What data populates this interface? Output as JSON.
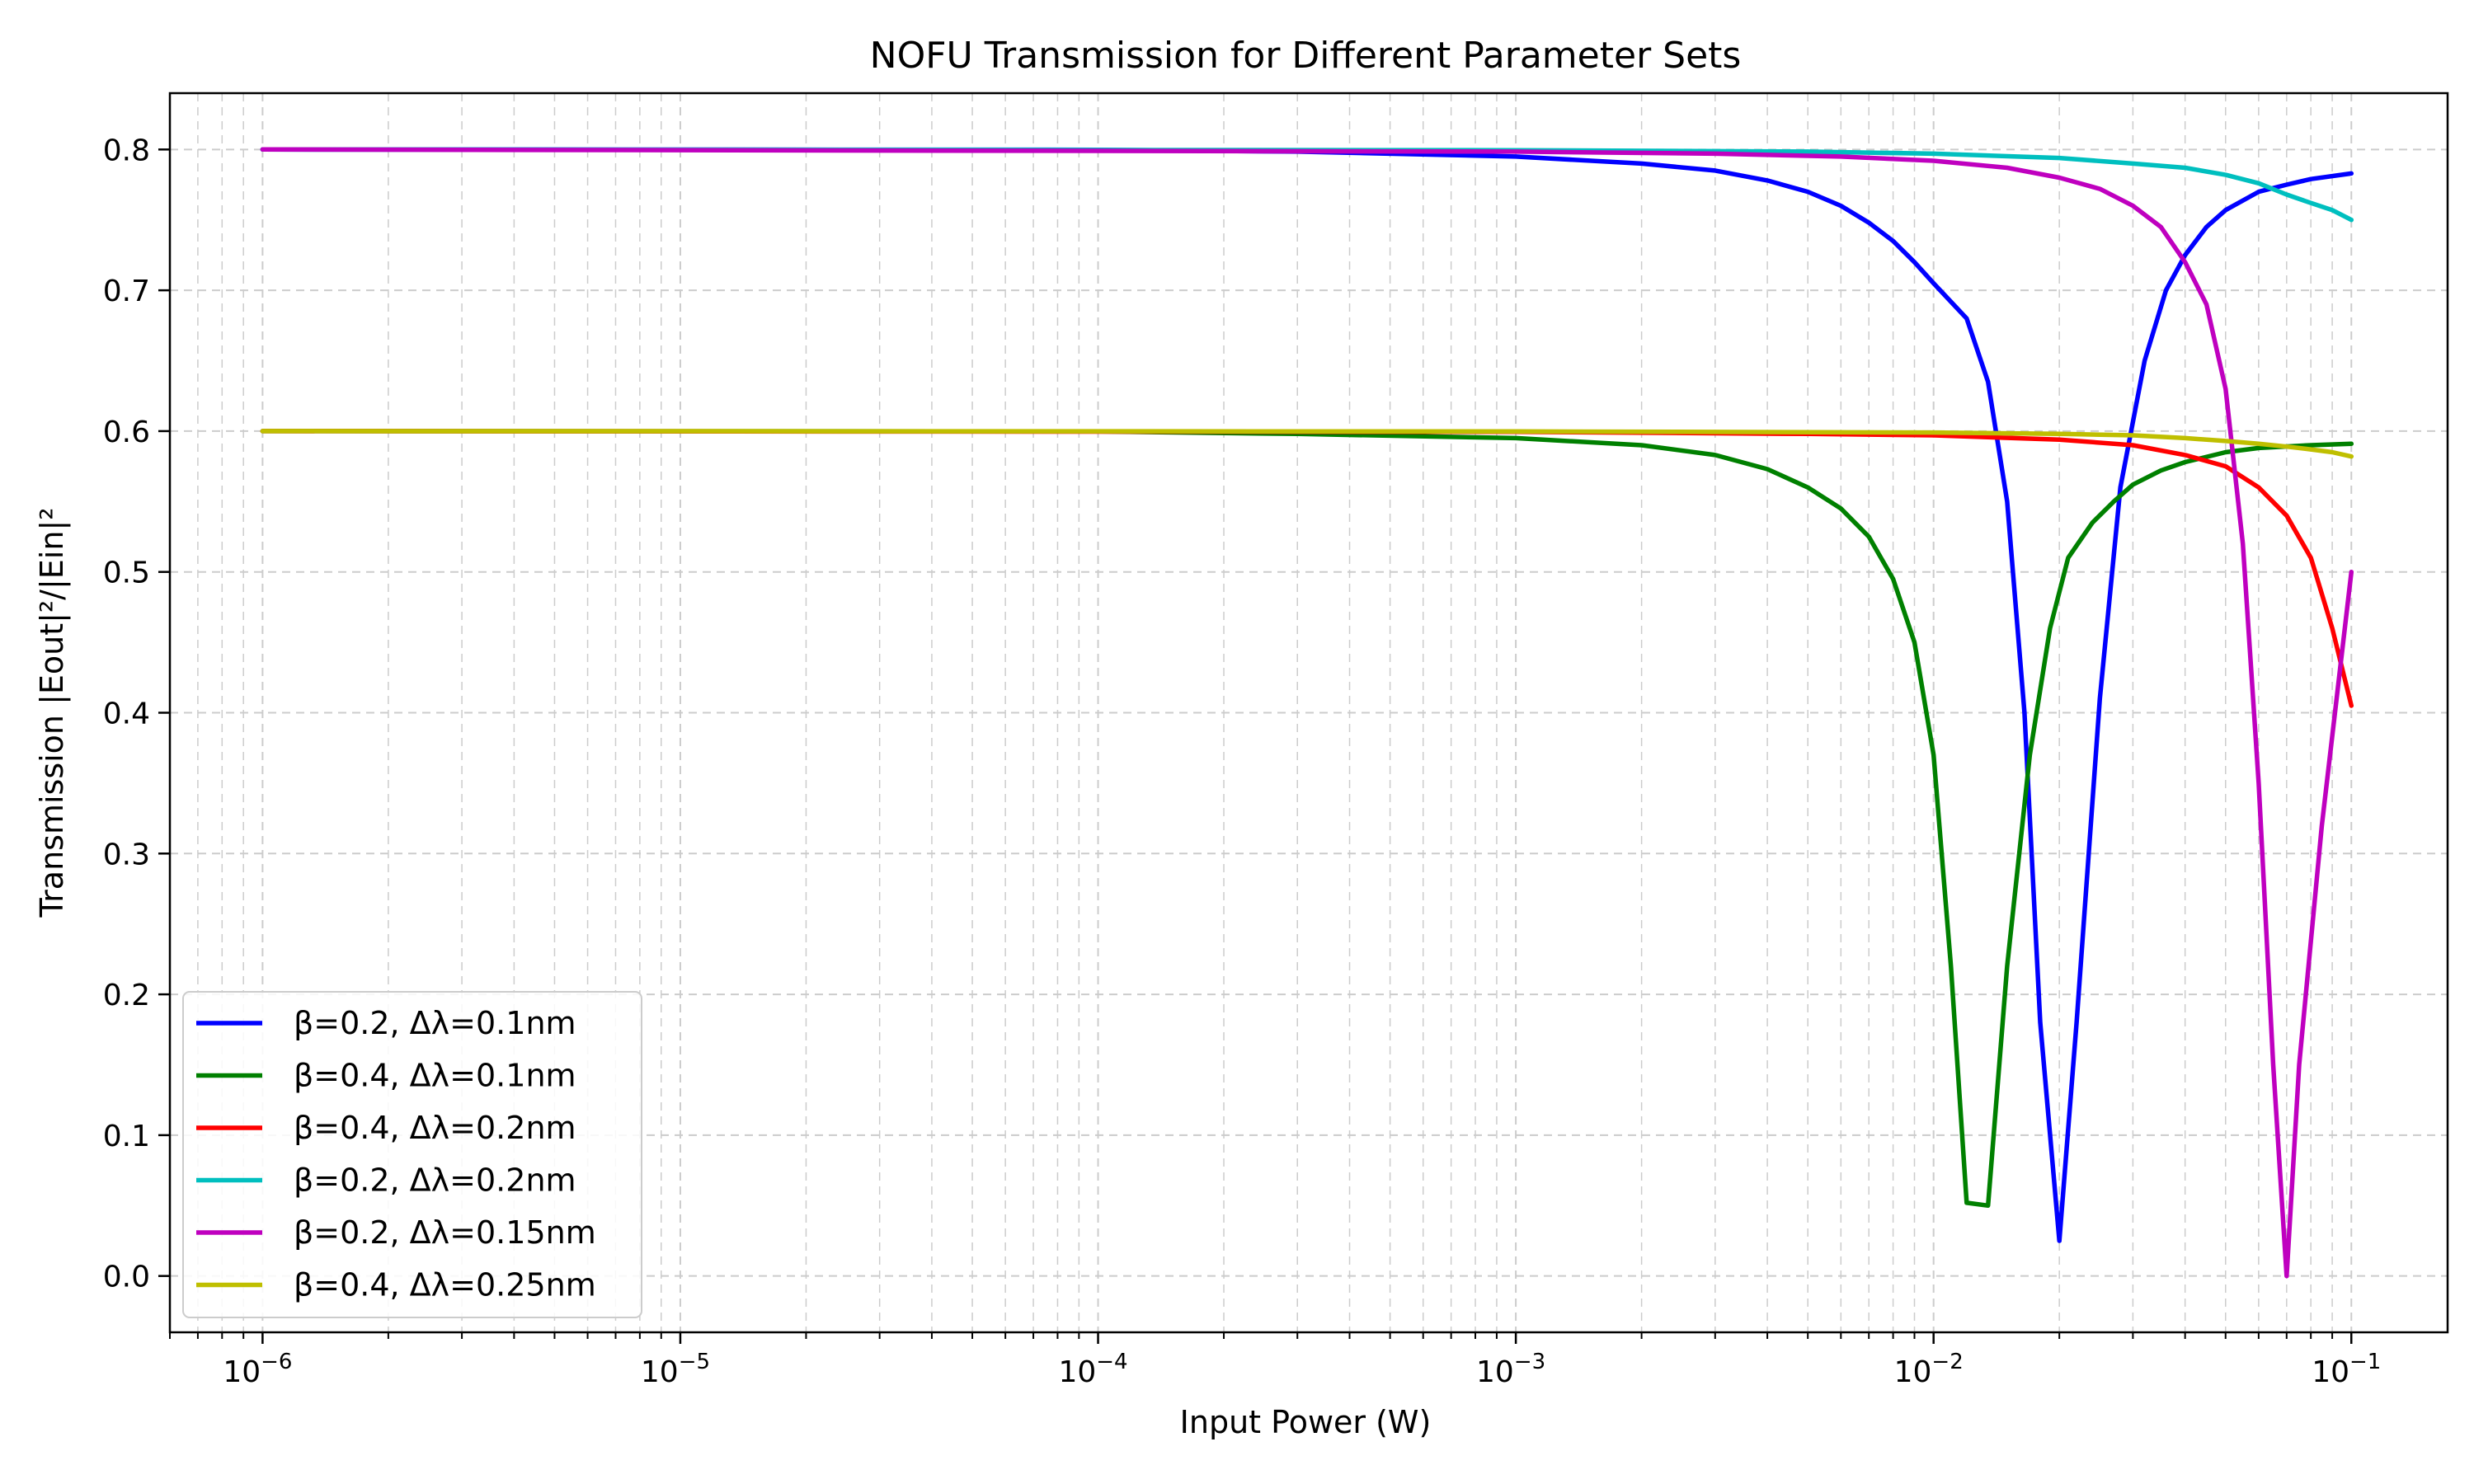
{
  "chart_data": {
    "type": "line",
    "title": "NOFU Transmission for Different Parameter Sets",
    "xlabel": "Input Power (W)",
    "ylabel": "Transmission |Eout|²/|Ein|²",
    "xscale": "log",
    "xlim": [
      6e-07,
      0.17
    ],
    "ylim": [
      -0.04,
      0.84
    ],
    "grid": true,
    "legend_position": "lower-left",
    "x_ticks": [
      {
        "value": 1e-06,
        "base": "10",
        "exp": "−6"
      },
      {
        "value": 1e-05,
        "base": "10",
        "exp": "−5"
      },
      {
        "value": 0.0001,
        "base": "10",
        "exp": "−4"
      },
      {
        "value": 0.001,
        "base": "10",
        "exp": "−3"
      },
      {
        "value": 0.01,
        "base": "10",
        "exp": "−2"
      },
      {
        "value": 0.1,
        "base": "10",
        "exp": "−1"
      }
    ],
    "y_ticks": [
      {
        "value": 0.0,
        "label": "0.0"
      },
      {
        "value": 0.1,
        "label": "0.1"
      },
      {
        "value": 0.2,
        "label": "0.2"
      },
      {
        "value": 0.3,
        "label": "0.3"
      },
      {
        "value": 0.4,
        "label": "0.4"
      },
      {
        "value": 0.5,
        "label": "0.5"
      },
      {
        "value": 0.6,
        "label": "0.6"
      },
      {
        "value": 0.7,
        "label": "0.7"
      },
      {
        "value": 0.8,
        "label": "0.8"
      }
    ],
    "series": [
      {
        "name": "β=0.2, Δλ=0.1nm",
        "color": "#0000ff",
        "points": [
          [
            1e-06,
            0.8
          ],
          [
            0.0001,
            0.7998
          ],
          [
            0.0003,
            0.7985
          ],
          [
            0.001,
            0.795
          ],
          [
            0.002,
            0.79
          ],
          [
            0.003,
            0.785
          ],
          [
            0.004,
            0.778
          ],
          [
            0.005,
            0.77
          ],
          [
            0.006,
            0.76
          ],
          [
            0.007,
            0.748
          ],
          [
            0.008,
            0.735
          ],
          [
            0.009,
            0.72
          ],
          [
            0.01,
            0.705
          ],
          [
            0.012,
            0.68
          ],
          [
            0.0135,
            0.635
          ],
          [
            0.015,
            0.55
          ],
          [
            0.0165,
            0.4
          ],
          [
            0.018,
            0.18
          ],
          [
            0.02,
            0.025
          ],
          [
            0.022,
            0.18
          ],
          [
            0.025,
            0.41
          ],
          [
            0.028,
            0.56
          ],
          [
            0.032,
            0.65
          ],
          [
            0.036,
            0.7
          ],
          [
            0.04,
            0.725
          ],
          [
            0.045,
            0.745
          ],
          [
            0.05,
            0.757
          ],
          [
            0.06,
            0.77
          ],
          [
            0.07,
            0.775
          ],
          [
            0.08,
            0.779
          ],
          [
            0.1,
            0.783
          ]
        ]
      },
      {
        "name": "β=0.4, Δλ=0.1nm",
        "color": "#008000",
        "points": [
          [
            1e-06,
            0.6
          ],
          [
            0.0001,
            0.5998
          ],
          [
            0.0003,
            0.598
          ],
          [
            0.001,
            0.595
          ],
          [
            0.002,
            0.59
          ],
          [
            0.003,
            0.583
          ],
          [
            0.004,
            0.573
          ],
          [
            0.005,
            0.56
          ],
          [
            0.006,
            0.545
          ],
          [
            0.007,
            0.525
          ],
          [
            0.008,
            0.495
          ],
          [
            0.009,
            0.45
          ],
          [
            0.01,
            0.37
          ],
          [
            0.011,
            0.22
          ],
          [
            0.012,
            0.052
          ],
          [
            0.0135,
            0.05
          ],
          [
            0.015,
            0.22
          ],
          [
            0.017,
            0.37
          ],
          [
            0.019,
            0.46
          ],
          [
            0.021,
            0.51
          ],
          [
            0.024,
            0.535
          ],
          [
            0.027,
            0.55
          ],
          [
            0.03,
            0.562
          ],
          [
            0.035,
            0.572
          ],
          [
            0.04,
            0.578
          ],
          [
            0.05,
            0.585
          ],
          [
            0.06,
            0.588
          ],
          [
            0.08,
            0.59
          ],
          [
            0.1,
            0.591
          ]
        ]
      },
      {
        "name": "β=0.4, Δλ=0.2nm",
        "color": "#ff0000",
        "points": [
          [
            1e-06,
            0.6
          ],
          [
            0.001,
            0.5995
          ],
          [
            0.005,
            0.598
          ],
          [
            0.01,
            0.597
          ],
          [
            0.02,
            0.594
          ],
          [
            0.03,
            0.59
          ],
          [
            0.04,
            0.583
          ],
          [
            0.05,
            0.575
          ],
          [
            0.06,
            0.56
          ],
          [
            0.07,
            0.54
          ],
          [
            0.08,
            0.51
          ],
          [
            0.09,
            0.46
          ],
          [
            0.1,
            0.405
          ]
        ]
      },
      {
        "name": "β=0.2, Δλ=0.2nm",
        "color": "#00bfbf",
        "points": [
          [
            1e-06,
            0.8
          ],
          [
            0.001,
            0.7995
          ],
          [
            0.005,
            0.7985
          ],
          [
            0.01,
            0.797
          ],
          [
            0.02,
            0.794
          ],
          [
            0.03,
            0.79
          ],
          [
            0.04,
            0.787
          ],
          [
            0.05,
            0.782
          ],
          [
            0.06,
            0.776
          ],
          [
            0.07,
            0.768
          ],
          [
            0.08,
            0.762
          ],
          [
            0.09,
            0.757
          ],
          [
            0.1,
            0.75
          ]
        ]
      },
      {
        "name": "β=0.2, Δλ=0.15nm",
        "color": "#bf00bf",
        "points": [
          [
            1e-06,
            0.8
          ],
          [
            0.001,
            0.7985
          ],
          [
            0.003,
            0.797
          ],
          [
            0.006,
            0.795
          ],
          [
            0.01,
            0.792
          ],
          [
            0.015,
            0.787
          ],
          [
            0.02,
            0.78
          ],
          [
            0.025,
            0.772
          ],
          [
            0.03,
            0.76
          ],
          [
            0.035,
            0.745
          ],
          [
            0.04,
            0.72
          ],
          [
            0.045,
            0.69
          ],
          [
            0.05,
            0.63
          ],
          [
            0.055,
            0.52
          ],
          [
            0.06,
            0.35
          ],
          [
            0.065,
            0.15
          ],
          [
            0.07,
            0.0
          ],
          [
            0.075,
            0.15
          ],
          [
            0.085,
            0.32
          ],
          [
            0.1,
            0.5
          ]
        ]
      },
      {
        "name": "β=0.4, Δλ=0.25nm",
        "color": "#bfbf00",
        "points": [
          [
            1e-06,
            0.6
          ],
          [
            0.001,
            0.5998
          ],
          [
            0.01,
            0.599
          ],
          [
            0.02,
            0.598
          ],
          [
            0.03,
            0.597
          ],
          [
            0.04,
            0.595
          ],
          [
            0.05,
            0.593
          ],
          [
            0.06,
            0.591
          ],
          [
            0.07,
            0.589
          ],
          [
            0.08,
            0.587
          ],
          [
            0.09,
            0.585
          ],
          [
            0.1,
            0.582
          ]
        ]
      }
    ]
  }
}
